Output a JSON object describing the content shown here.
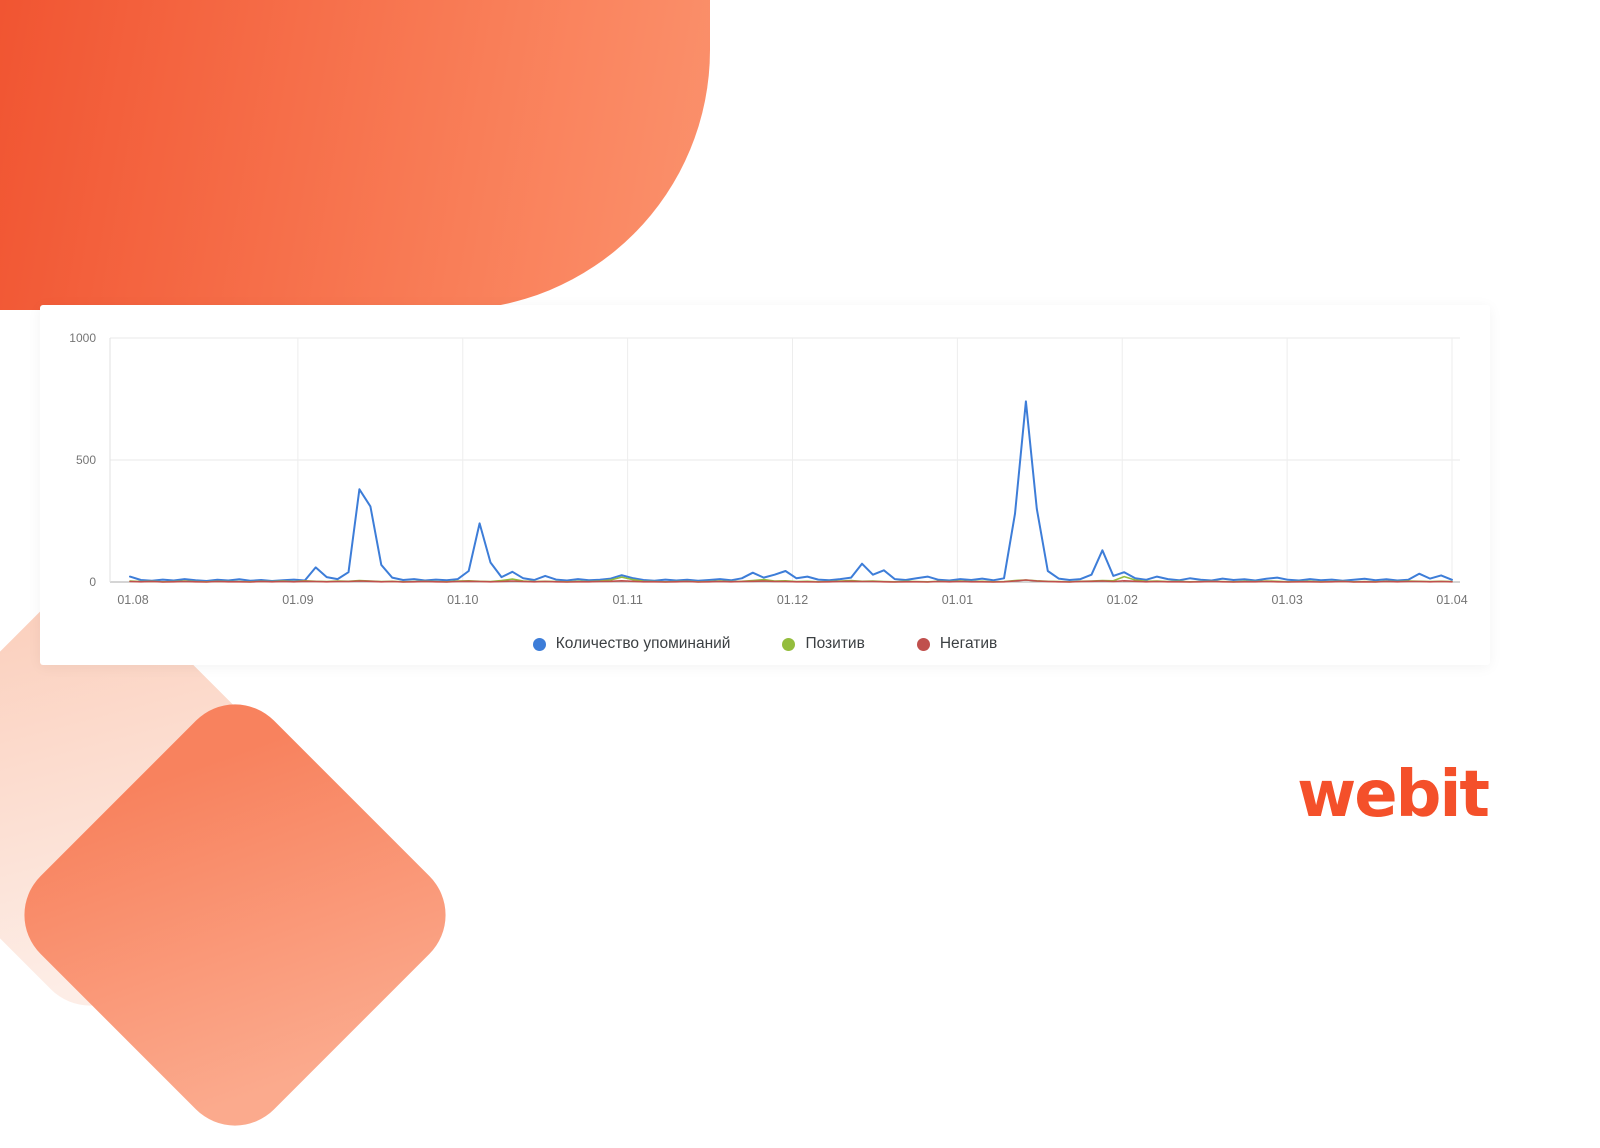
{
  "brand": {
    "logo_text": "webit",
    "color": "#F4502A"
  },
  "decor": {
    "top_blob_gradient": [
      "#F0512E",
      "#FB926D"
    ],
    "light_diamond_gradient": [
      "#FBD1BF",
      "#FDEDE6"
    ],
    "coral_diamond_gradient": [
      "#F8825E",
      "#FBAA8D"
    ]
  },
  "chart_data": {
    "type": "line",
    "title": "",
    "xlabel": "",
    "ylabel": "",
    "ylim": [
      0,
      1000
    ],
    "y_ticks": [
      0,
      500,
      1000
    ],
    "x_tick_labels": [
      "01.08",
      "01.09",
      "01.10",
      "01.11",
      "01.12",
      "01.01",
      "01.02",
      "01.03",
      "01.04"
    ],
    "grid": true,
    "legend_position": "bottom",
    "series": [
      {
        "name": "Количество упоминаний",
        "color": "#3D7DD8",
        "values": [
          22,
          8,
          5,
          10,
          6,
          12,
          7,
          4,
          9,
          6,
          11,
          5,
          8,
          4,
          7,
          10,
          6,
          60,
          20,
          12,
          40,
          380,
          310,
          70,
          18,
          8,
          12,
          6,
          10,
          7,
          12,
          45,
          240,
          80,
          20,
          42,
          15,
          8,
          25,
          10,
          6,
          12,
          7,
          9,
          14,
          28,
          16,
          8,
          5,
          10,
          6,
          9,
          5,
          8,
          12,
          7,
          15,
          38,
          18,
          30,
          45,
          15,
          22,
          10,
          7,
          12,
          18,
          75,
          30,
          48,
          12,
          8,
          15,
          22,
          9,
          6,
          12,
          8,
          14,
          7,
          15,
          280,
          740,
          300,
          45,
          14,
          8,
          12,
          30,
          130,
          25,
          40,
          15,
          9,
          22,
          12,
          7,
          15,
          9,
          6,
          14,
          8,
          11,
          6,
          13,
          18,
          9,
          6,
          12,
          7,
          10,
          5,
          9,
          13,
          7,
          11,
          6,
          9,
          34,
          14,
          27,
          9
        ]
      },
      {
        "name": "Позитив",
        "color": "#94BD3D",
        "values": [
          4,
          2,
          3,
          1,
          2,
          4,
          2,
          1,
          3,
          2,
          2,
          1,
          3,
          2,
          4,
          2,
          5,
          3,
          2,
          4,
          3,
          6,
          4,
          2,
          3,
          1,
          2,
          3,
          2,
          1,
          4,
          5,
          3,
          2,
          6,
          12,
          4,
          2,
          3,
          2,
          1,
          3,
          2,
          4,
          8,
          20,
          10,
          3,
          2,
          1,
          2,
          3,
          1,
          2,
          4,
          2,
          3,
          6,
          10,
          4,
          5,
          2,
          3,
          1,
          2,
          4,
          6,
          3,
          4,
          2,
          1,
          3,
          2,
          1,
          3,
          2,
          4,
          2,
          3,
          1,
          2,
          6,
          8,
          5,
          3,
          2,
          1,
          3,
          4,
          6,
          5,
          22,
          8,
          3,
          4,
          2,
          3,
          1,
          2,
          3,
          2,
          1,
          3,
          2,
          4,
          3,
          1,
          2,
          3,
          1,
          2,
          3,
          1,
          2,
          1,
          3,
          2,
          4,
          3,
          2,
          3,
          2
        ]
      },
      {
        "name": "Негатив",
        "color": "#C0504D",
        "values": [
          2,
          1,
          2,
          0,
          1,
          2,
          1,
          0,
          2,
          1,
          1,
          0,
          2,
          1,
          2,
          1,
          3,
          2,
          1,
          2,
          2,
          4,
          3,
          1,
          2,
          0,
          1,
          2,
          1,
          0,
          2,
          3,
          2,
          1,
          2,
          4,
          2,
          1,
          2,
          1,
          0,
          1,
          1,
          2,
          3,
          5,
          3,
          1,
          1,
          0,
          1,
          2,
          0,
          1,
          2,
          1,
          2,
          3,
          4,
          2,
          2,
          1,
          1,
          0,
          1,
          2,
          3,
          2,
          2,
          1,
          0,
          1,
          1,
          0,
          2,
          1,
          2,
          1,
          1,
          0,
          1,
          4,
          8,
          4,
          2,
          1,
          0,
          2,
          3,
          4,
          2,
          5,
          3,
          1,
          2,
          1,
          1,
          0,
          1,
          2,
          1,
          0,
          1,
          1,
          2,
          1,
          0,
          1,
          1,
          0,
          1,
          2,
          0,
          1,
          0,
          2,
          1,
          2,
          2,
          1,
          2,
          1
        ]
      }
    ]
  }
}
